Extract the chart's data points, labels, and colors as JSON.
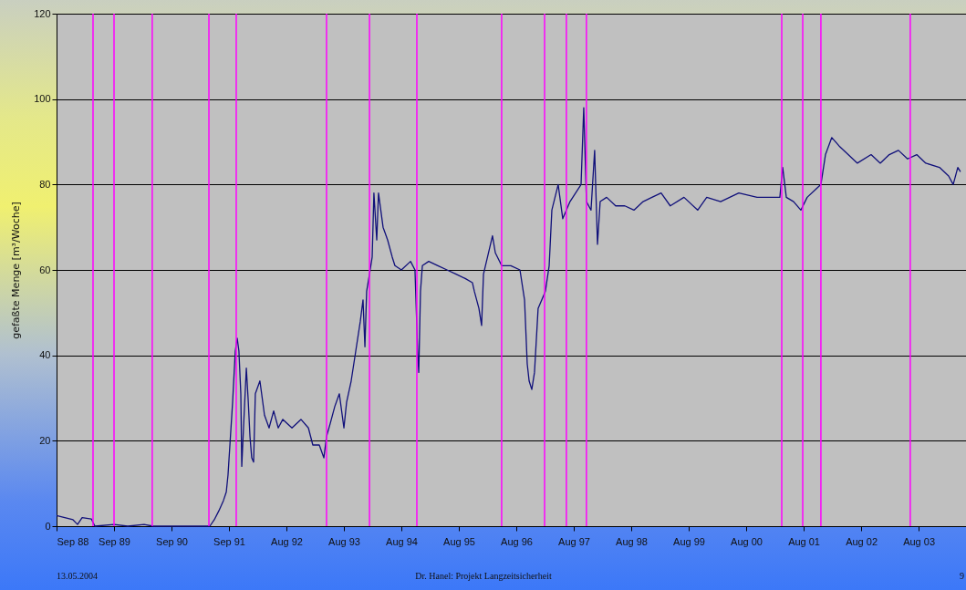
{
  "chart_data": {
    "type": "line",
    "ylabel": "gefaßte Menge [m³/Woche]",
    "annotations": [
      "13.05.2004",
      "Dr. Hanel: Projekt Langzeitsicherheit",
      "9"
    ],
    "x": [
      "1988-09-05",
      "1988-12-18",
      "1989-01-16",
      "1989-02-14",
      "1989-04-13",
      "1989-05-06",
      "1989-09-04",
      "1989-11-30",
      "1990-03-13",
      "1990-05-09",
      "1991-05-04",
      "1991-06-01",
      "1991-06-30",
      "1991-07-29",
      "1991-08-16",
      "1991-08-27",
      "1991-09-13",
      "1991-09-25",
      "1991-10-12",
      "1991-10-24",
      "1991-11-04",
      "1991-11-16",
      "1991-11-22",
      "1991-12-03",
      "1991-12-21",
      "1992-01-01",
      "1992-01-13",
      "1992-01-24",
      "1992-02-05",
      "1992-02-16",
      "1992-03-16",
      "1992-04-14",
      "1992-05-13",
      "1992-06-11",
      "1992-07-10",
      "1992-08-08",
      "1992-10-05",
      "1992-12-01",
      "1993-01-17",
      "1993-02-14",
      "1993-03-27",
      "1993-04-25",
      "1993-05-12",
      "1993-06-04",
      "1993-07-03",
      "1993-08-01",
      "1993-08-30",
      "1993-09-16",
      "1993-10-15",
      "1993-11-13",
      "1993-12-12",
      "1993-12-29",
      "1994-01-10",
      "1994-01-21",
      "1994-02-08",
      "1994-02-25",
      "1994-03-08",
      "1994-03-26",
      "1994-04-06",
      "1994-05-05",
      "1994-06-03",
      "1994-07-02",
      "1994-07-19",
      "1994-08-29",
      "1994-10-26",
      "1994-11-23",
      "1994-12-11",
      "1994-12-17",
      "1994-12-28",
      "1995-01-09",
      "1995-02-18",
      "1995-04-17",
      "1995-06-14",
      "1995-08-10",
      "1995-10-07",
      "1995-11-22",
      "1995-12-04",
      "1996-01-02",
      "1996-01-19",
      "1996-01-31",
      "1996-03-28",
      "1996-04-15",
      "1996-05-25",
      "1996-07-22",
      "1996-09-18",
      "1996-10-17",
      "1996-11-03",
      "1996-11-15",
      "1996-12-02",
      "1996-12-19",
      "1997-01-11",
      "1997-02-26",
      "1997-03-22",
      "1997-04-08",
      "1997-05-18",
      "1997-06-16",
      "1997-08-01",
      "1997-10-10",
      "1997-10-27",
      "1997-11-13",
      "1997-12-12",
      "1998-01-04",
      "1998-01-22",
      "1998-02-08",
      "1998-03-21",
      "1998-05-17",
      "1998-07-14",
      "1998-09-10",
      "1998-11-07",
      "1999-01-02",
      "1999-03-01",
      "1999-04-28",
      "1999-07-24",
      "1999-10-19",
      "1999-12-15",
      "2000-03-12",
      "2000-07-05",
      "2000-10-29",
      "2001-03-22",
      "2001-04-09",
      "2001-05-02",
      "2001-06-17",
      "2001-08-02",
      "2001-09-11",
      "2001-11-08",
      "2001-12-07",
      "2002-01-05",
      "2002-02-14",
      "2002-04-02",
      "2002-05-29",
      "2002-07-26",
      "2002-10-21",
      "2002-12-18",
      "2003-02-13",
      "2003-04-12",
      "2003-06-09",
      "2003-08-06",
      "2003-10-02",
      "2003-12-28",
      "2004-02-24",
      "2004-03-24",
      "2004-04-22",
      "2004-05-09"
    ],
    "series": [
      {
        "color": "#10107a",
        "values": [
          2.5,
          1.5,
          0.4,
          2,
          1.7,
          0,
          0.4,
          0,
          0.4,
          0,
          0,
          1.5,
          3.6,
          6,
          8,
          12,
          22,
          29,
          41,
          44,
          41,
          31,
          14,
          23,
          37,
          30,
          21,
          16,
          15,
          31,
          34,
          26,
          23,
          27,
          23,
          25,
          23,
          25,
          23,
          19,
          19,
          16,
          21,
          24,
          28,
          31,
          23,
          29,
          34,
          41,
          48,
          53,
          42,
          55,
          59,
          63,
          78,
          67,
          78,
          70,
          67,
          63,
          61,
          60,
          62,
          60,
          40,
          36,
          55,
          61,
          62,
          61,
          60,
          59,
          58,
          57,
          55,
          51,
          47,
          59,
          68,
          64,
          61,
          61,
          60,
          53,
          38,
          34,
          32,
          36,
          51,
          55,
          61,
          74,
          80,
          72,
          76,
          80,
          98,
          76,
          74,
          88,
          66,
          76,
          77,
          75,
          75,
          74,
          76,
          77,
          78,
          75,
          77,
          74,
          77,
          76,
          78,
          77,
          77,
          84,
          77,
          76,
          74,
          77,
          79,
          80,
          87,
          91,
          89,
          87,
          85,
          87,
          85,
          87,
          88,
          86,
          87,
          85,
          84,
          82,
          80,
          84,
          83
        ]
      }
    ],
    "xlim": [
      "1988-09-05",
      "2004-06-13"
    ],
    "xticks": [
      {
        "value": "1988-09-05",
        "label": "Sep 88"
      },
      {
        "value": "1989-09-04",
        "label": "Sep 89"
      },
      {
        "value": "1990-09-03",
        "label": "Sep 90"
      },
      {
        "value": "1991-09-02",
        "label": "Sep 91"
      },
      {
        "value": "1992-08-31",
        "label": "Aug 92"
      },
      {
        "value": "1993-08-30",
        "label": "Aug 93"
      },
      {
        "value": "1994-08-29",
        "label": "Aug 94"
      },
      {
        "value": "1995-08-28",
        "label": "Aug 95"
      },
      {
        "value": "1996-08-26",
        "label": "Aug 96"
      },
      {
        "value": "1997-08-25",
        "label": "Aug 97"
      },
      {
        "value": "1998-08-24",
        "label": "Aug 98"
      },
      {
        "value": "1999-08-23",
        "label": "Aug 99"
      },
      {
        "value": "2000-08-21",
        "label": "Aug 00"
      },
      {
        "value": "2001-08-20",
        "label": "Aug 01"
      },
      {
        "value": "2002-08-19",
        "label": "Aug 02"
      },
      {
        "value": "2003-08-18",
        "label": "Aug 03"
      }
    ],
    "ylim": [
      0,
      120
    ],
    "yticks": [
      0,
      20,
      40,
      60,
      80,
      100,
      120
    ],
    "grid": "y",
    "ref_lines": [
      {
        "axis": "x",
        "value": "1989-04-24",
        "color": "#ff00ff"
      },
      {
        "axis": "x",
        "value": "1989-09-04",
        "color": "#ff00ff"
      },
      {
        "axis": "x",
        "value": "1990-05-04",
        "color": "#ff00ff"
      },
      {
        "axis": "x",
        "value": "1991-04-28",
        "color": "#ff00ff"
      },
      {
        "axis": "x",
        "value": "1991-10-18",
        "color": "#ff00ff"
      },
      {
        "axis": "x",
        "value": "1993-05-12",
        "color": "#ff00ff"
      },
      {
        "axis": "x",
        "value": "1994-02-08",
        "color": "#ff00ff"
      },
      {
        "axis": "x",
        "value": "1994-12-05",
        "color": "#ff00ff"
      },
      {
        "axis": "x",
        "value": "1996-05-25",
        "color": "#ff00ff"
      },
      {
        "axis": "x",
        "value": "1997-02-21",
        "color": "#ff00ff"
      },
      {
        "axis": "x",
        "value": "1997-07-09",
        "color": "#ff00ff"
      },
      {
        "axis": "x",
        "value": "1997-11-13",
        "color": "#ff00ff"
      },
      {
        "axis": "x",
        "value": "2001-04-03",
        "color": "#ff00ff"
      },
      {
        "axis": "x",
        "value": "2001-08-14",
        "color": "#ff00ff"
      },
      {
        "axis": "x",
        "value": "2001-12-07",
        "color": "#ff00ff"
      },
      {
        "axis": "x",
        "value": "2003-06-26",
        "color": "#ff00ff"
      }
    ]
  }
}
